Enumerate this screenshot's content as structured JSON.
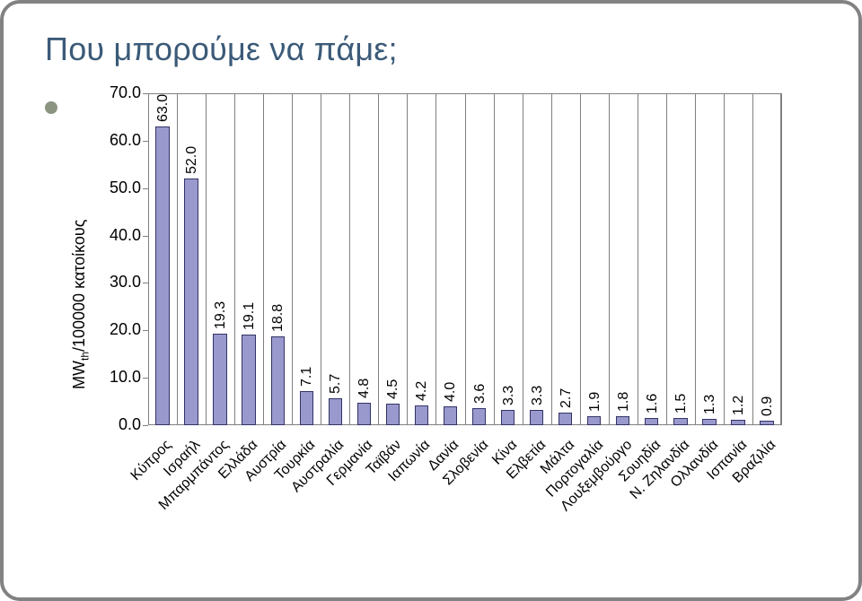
{
  "title": "Που μπορούμε να πάμε;",
  "chart": {
    "type": "bar",
    "ylabel": "MW_th/100000 κατοίκους",
    "categories": [
      "Κύπρος",
      "Ισραήλ",
      "Μπαρμπάντος",
      "Ελλάδα",
      "Αυστρία",
      "Τουρκία",
      "Αυστραλία",
      "Γερμανία",
      "Ταϊβάν",
      "Ιαπωνία",
      "Δανία",
      "Σλοβενία",
      "Κίνα",
      "Ελβετία",
      "Μάλτα",
      "Πορτογαλία",
      "Λουξεμβούργο",
      "Σουηδία",
      "Ν. Ζηλανδία",
      "Ολλανδία",
      "Ισπανία",
      "Βραζιλία"
    ],
    "values": [
      63.0,
      52.0,
      19.3,
      19.1,
      18.8,
      7.1,
      5.7,
      4.8,
      4.5,
      4.2,
      4.0,
      3.6,
      3.3,
      3.3,
      2.7,
      1.9,
      1.8,
      1.6,
      1.5,
      1.3,
      1.2,
      0.9
    ],
    "ylim": [
      0.0,
      70.0
    ],
    "yticks": [
      0.0,
      10.0,
      20.0,
      30.0,
      40.0,
      50.0,
      60.0,
      70.0
    ],
    "bar_color": "#9999ce",
    "bar_border": "#333366",
    "grid_color": "#808080",
    "background_color": "#ffffff",
    "font_family": "Verdana",
    "label_fontsize": 16,
    "tick_fontsize": 18,
    "title_color": "#3b5a78",
    "border_color": "#828282"
  }
}
